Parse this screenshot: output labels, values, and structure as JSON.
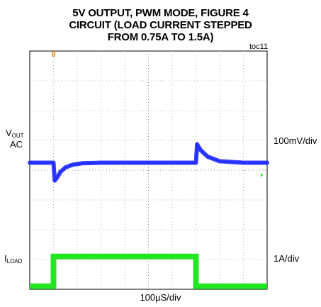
{
  "chart_data": {
    "type": "line",
    "title_lines": [
      "5V OUTPUT, PWM MODE, FIGURE 4",
      "CIRCUIT (LOAD CURRENT STEPPED",
      "FROM 0.75A TO 1.5A)"
    ],
    "figure_id": "toc11",
    "xlabel": "100µS/div",
    "grid": true,
    "divisions": {
      "x": 10,
      "y": 8
    },
    "trigger_marker": "0",
    "channels": [
      {
        "name_main": "V",
        "name_sub": "OUT",
        "name_line2": "AC",
        "scale": "100mV/div",
        "color": "#1f2bff",
        "x_div": [
          0.0,
          1.0,
          1.05,
          1.15,
          1.3,
          1.5,
          1.8,
          2.2,
          3.0,
          4.0,
          5.0,
          6.0,
          7.0,
          7.05,
          7.2,
          7.5,
          8.0,
          9.0,
          10.0
        ],
        "y_mv": [
          0,
          0,
          -60,
          -50,
          -30,
          -16,
          -7,
          -2,
          0,
          0,
          0,
          0,
          0,
          62,
          42,
          20,
          5,
          0,
          0
        ]
      },
      {
        "name_main": "I",
        "name_sub": "LOAD",
        "name_line2": "",
        "scale": "1A/div",
        "color": "#22e622",
        "x_div": [
          0.0,
          1.0,
          1.0,
          7.0,
          7.0,
          10.0
        ],
        "y_a": [
          0.75,
          0.75,
          1.5,
          1.5,
          0.75,
          0.75
        ]
      }
    ]
  }
}
